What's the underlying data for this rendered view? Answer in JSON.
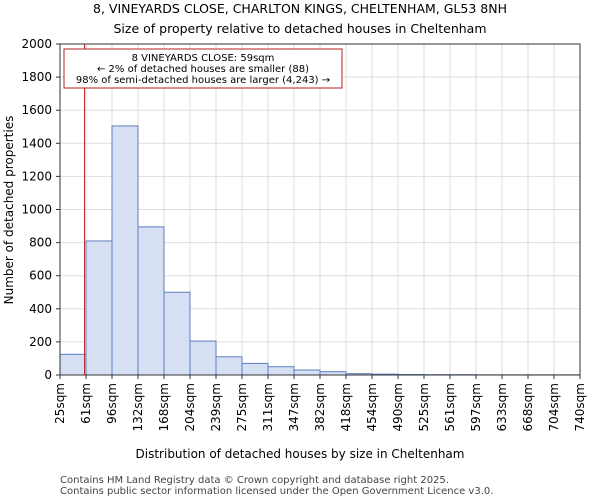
{
  "chart_data": {
    "type": "bar",
    "title": "8, VINEYARDS CLOSE, CHARLTON KINGS, CHELTENHAM, GL53 8NH",
    "subtitle": "Size of property relative to detached houses in Cheltenham",
    "xlabel": "Distribution of detached houses by size in Cheltenham",
    "ylabel": "Number of detached properties",
    "ylim": [
      0,
      2000
    ],
    "yticks": [
      0,
      200,
      400,
      600,
      800,
      1000,
      1200,
      1400,
      1600,
      1800,
      2000
    ],
    "bin_edges": [
      25,
      61,
      96,
      132,
      168,
      204,
      239,
      275,
      311,
      347,
      382,
      418,
      454,
      490,
      525,
      561,
      597,
      633,
      668,
      704,
      740
    ],
    "tick_labels": [
      "25sqm",
      "61sqm",
      "96sqm",
      "132sqm",
      "168sqm",
      "204sqm",
      "239sqm",
      "275sqm",
      "311sqm",
      "347sqm",
      "382sqm",
      "418sqm",
      "454sqm",
      "490sqm",
      "525sqm",
      "561sqm",
      "597sqm",
      "633sqm",
      "668sqm",
      "704sqm",
      "740sqm"
    ],
    "values": [
      125,
      810,
      1505,
      895,
      500,
      205,
      110,
      70,
      50,
      30,
      20,
      8,
      5,
      3,
      2,
      2,
      1,
      1,
      1,
      1
    ],
    "marker": {
      "value": 59,
      "color": "#b22222"
    },
    "annotation": {
      "line1": "8 VINEYARDS CLOSE: 59sqm",
      "line2": "← 2% of detached houses are smaller (88)",
      "line3": "98% of semi-detached houses are larger (4,243) →"
    },
    "bar_fill": "#d6dff3",
    "bar_stroke": "#5b7fc0",
    "grid": true
  },
  "footer": {
    "line1": "Contains HM Land Registry data © Crown copyright and database right 2025.",
    "line2": "Contains public sector information licensed under the Open Government Licence v3.0."
  }
}
